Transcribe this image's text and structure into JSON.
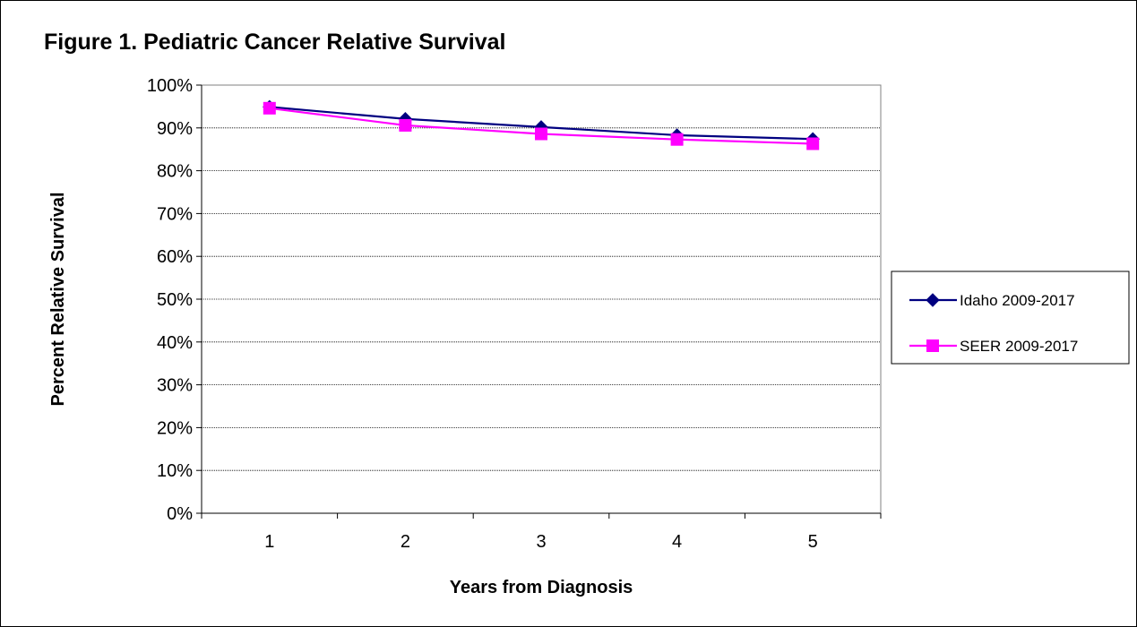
{
  "chart_data": {
    "type": "line",
    "title": "Figure 1. Pediatric Cancer Relative Survival",
    "xlabel": "Years from Diagnosis",
    "ylabel": "Percent Relative Survival",
    "categories": [
      "1",
      "2",
      "3",
      "4",
      "5"
    ],
    "y_ticks": [
      "0%",
      "10%",
      "20%",
      "30%",
      "40%",
      "50%",
      "60%",
      "70%",
      "80%",
      "90%",
      "100%"
    ],
    "ylim": [
      0,
      100
    ],
    "grid": true,
    "legend_position": "right",
    "series": [
      {
        "name": "Idaho 2009-2017",
        "values": [
          94.9,
          92.1,
          90.2,
          88.3,
          87.4
        ],
        "color": "#000080",
        "marker": "diamond"
      },
      {
        "name": "SEER 2009-2017",
        "values": [
          94.6,
          90.6,
          88.6,
          87.3,
          86.3
        ],
        "color": "#FF00FF",
        "marker": "square"
      }
    ]
  }
}
